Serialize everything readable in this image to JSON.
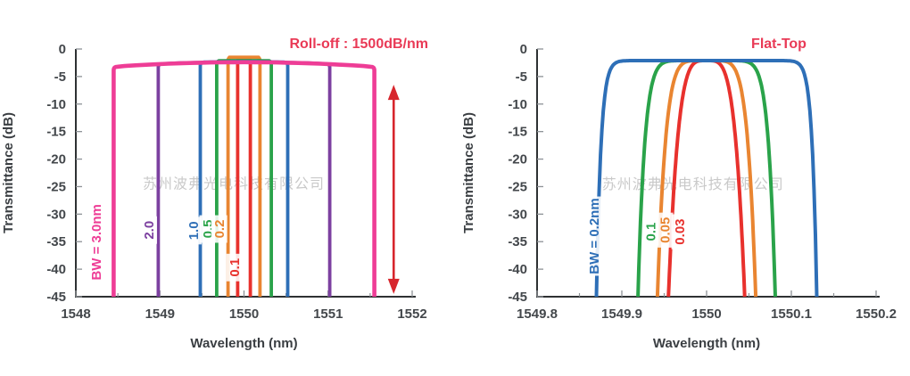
{
  "figure": {
    "background": "#ffffff",
    "watermark_text": "苏州波弗光电科技有限公司",
    "watermark_color": "#a9a9a9"
  },
  "chart_data": [
    {
      "id": "roll-off",
      "type": "line",
      "title": "Roll-off : 1500dB/nm",
      "title_color": "#e93a56",
      "xlabel": "Wavelength (nm)",
      "ylabel": "Transmittance (dB)",
      "xlim": [
        1548,
        1552
      ],
      "ylim": [
        -45,
        0
      ],
      "xticks": [
        1548,
        1549,
        1550,
        1551,
        1552
      ],
      "xtick_labels": [
        "1548",
        "1549",
        "1550",
        "1551",
        "1552"
      ],
      "x_minor_step": 0.5,
      "yticks": [
        0,
        -5,
        -10,
        -15,
        -20,
        -25,
        -30,
        -35,
        -40,
        -45
      ],
      "grid": false,
      "legend": "rotated in-plot labels",
      "roll_off_db_per_nm": 1500,
      "center_wavelength_nm": 1550,
      "top_curvature_db_per_nm2": 0.34,
      "series": [
        {
          "label": "BW = 3.0nm",
          "bandwidth_nm": 3.0,
          "color": "#ee3d96",
          "shape": "steep",
          "half_width_nm": 1.55,
          "band_edges_nm": [
            1548.45,
            1551.55
          ],
          "peak_db": -2.4,
          "line_width": 4.6,
          "label_pos": [
            1548.24,
            -35.1
          ]
        },
        {
          "label": "2.0",
          "bandwidth_nm": 2.0,
          "color": "#7c40a0",
          "shape": "steep",
          "half_width_nm": 1.02,
          "band_edges_nm": [
            1548.98,
            1551.02
          ],
          "peak_db": -2.35,
          "line_width": 3.8,
          "label_pos": [
            1548.87,
            -32.9
          ]
        },
        {
          "label": "1.0",
          "bandwidth_nm": 1.0,
          "color": "#2e6fb7",
          "shape": "steep",
          "half_width_nm": 0.52,
          "band_edges_nm": [
            1549.48,
            1550.52
          ],
          "peak_db": -2.3,
          "line_width": 3.8,
          "label_pos": [
            1549.4,
            -33.0
          ]
        },
        {
          "label": "0.5",
          "bandwidth_nm": 0.5,
          "color": "#2aa34a",
          "shape": "steep",
          "half_width_nm": 0.325,
          "band_edges_nm": [
            1549.675,
            1550.325
          ],
          "peak_db": -2.1,
          "line_width": 3.8,
          "label_pos": [
            1549.565,
            -32.7
          ]
        },
        {
          "label": "0.2",
          "bandwidth_nm": 0.2,
          "color": "#e98531",
          "shape": "steep",
          "half_width_nm": 0.19,
          "band_edges_nm": [
            1549.81,
            1550.19
          ],
          "peak_db": -1.5,
          "line_width": 3.8,
          "label_pos": [
            1549.705,
            -32.7
          ]
        },
        {
          "label": "0.1",
          "bandwidth_nm": 0.1,
          "color": "#e8312d",
          "shape": "steep",
          "half_width_nm": 0.075,
          "band_edges_nm": [
            1549.925,
            1550.075
          ],
          "peak_db": -1.7,
          "line_width": 3.8,
          "label_pos": [
            1549.885,
            -39.7
          ]
        }
      ],
      "annotation_arrow": {
        "meaning": "roll-off slope extent",
        "x_nm": 1551.78,
        "top_db": -6.5,
        "bottom_db": -44.5,
        "color": "#d7262d"
      },
      "watermark_pos": [
        1549.878,
        -25.3
      ]
    },
    {
      "id": "flat-top",
      "type": "line",
      "title": "Flat-Top",
      "title_color": "#e93a56",
      "xlabel": "Wavelength (nm)",
      "ylabel": "Transmittance (dB)",
      "xlim": [
        1549.8,
        1550.2
      ],
      "ylim": [
        -45,
        0
      ],
      "xticks": [
        1549.8,
        1549.9,
        1550,
        1550.1,
        1550.2
      ],
      "xtick_labels": [
        "1549.8",
        "1549.9",
        "1550",
        "1550.1",
        "1550.2"
      ],
      "x_minor_step": 0.05,
      "yticks": [
        0,
        -5,
        -10,
        -15,
        -20,
        -25,
        -30,
        -35,
        -40,
        -45
      ],
      "grid": false,
      "legend": "rotated in-plot labels",
      "center_wavelength_nm": 1550,
      "series": [
        {
          "label": "BW = 0.2nm",
          "bandwidth_nm": 0.2,
          "color": "#2e6fb7",
          "shape": "super_gaussian",
          "half_width_nm": 0.13,
          "order": 12,
          "band_edges_nm": [
            1549.87,
            1550.13
          ],
          "peak_db": -2.1,
          "line_width": 4.0,
          "label_pos": [
            1549.867,
            -34.0
          ]
        },
        {
          "label": "0.1",
          "bandwidth_nm": 0.1,
          "color": "#2aa34a",
          "shape": "super_gaussian",
          "half_width_nm": 0.081,
          "order": 5,
          "band_edges_nm": [
            1549.919,
            1550.081
          ],
          "peak_db": -2.1,
          "line_width": 4.0,
          "label_pos": [
            1549.934,
            -33.2
          ]
        },
        {
          "label": "0.05",
          "bandwidth_nm": 0.05,
          "color": "#e98531",
          "shape": "super_gaussian",
          "half_width_nm": 0.058,
          "order": 3,
          "band_edges_nm": [
            1549.942,
            1550.058
          ],
          "peak_db": -2.1,
          "line_width": 4.0,
          "label_pos": [
            1549.951,
            -32.9
          ]
        },
        {
          "label": "0.03",
          "bandwidth_nm": 0.03,
          "color": "#e8312d",
          "shape": "super_gaussian",
          "half_width_nm": 0.045,
          "order": 2,
          "band_edges_nm": [
            1549.955,
            1550.045
          ],
          "peak_db": -2.1,
          "label_pos": [
            1549.968,
            -33.2
          ],
          "line_width": 4.0
        }
      ],
      "watermark_pos": [
        1549.984,
        -25.4
      ]
    }
  ]
}
